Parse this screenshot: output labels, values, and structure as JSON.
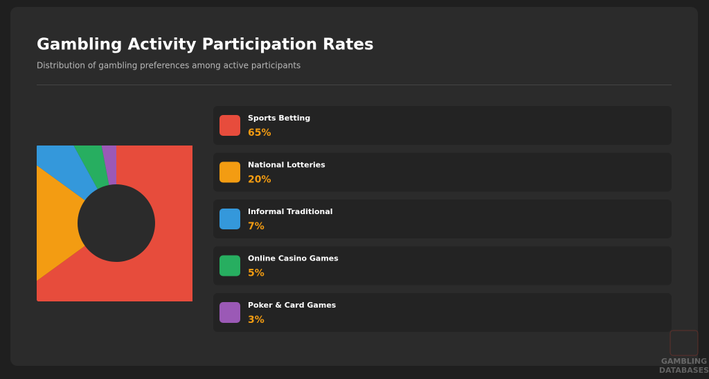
{
  "chart_data": {
    "type": "pie",
    "title": "Gambling Activity Participation Rates",
    "subtitle": "Distribution of gambling preferences among active participants",
    "categories": [
      "Sports Betting",
      "National Lotteries",
      "Informal Traditional",
      "Online Casino Games",
      "Poker & Card Games"
    ],
    "values": [
      65,
      20,
      7,
      5,
      3
    ],
    "value_labels": [
      "65%",
      "20%",
      "7%",
      "5%",
      "3%"
    ],
    "colors": [
      "#e74c3c",
      "#f39c12",
      "#3498db",
      "#27ae60",
      "#9b59b6"
    ],
    "watermark": [
      "GAMBLING",
      "DATABASES"
    ]
  }
}
